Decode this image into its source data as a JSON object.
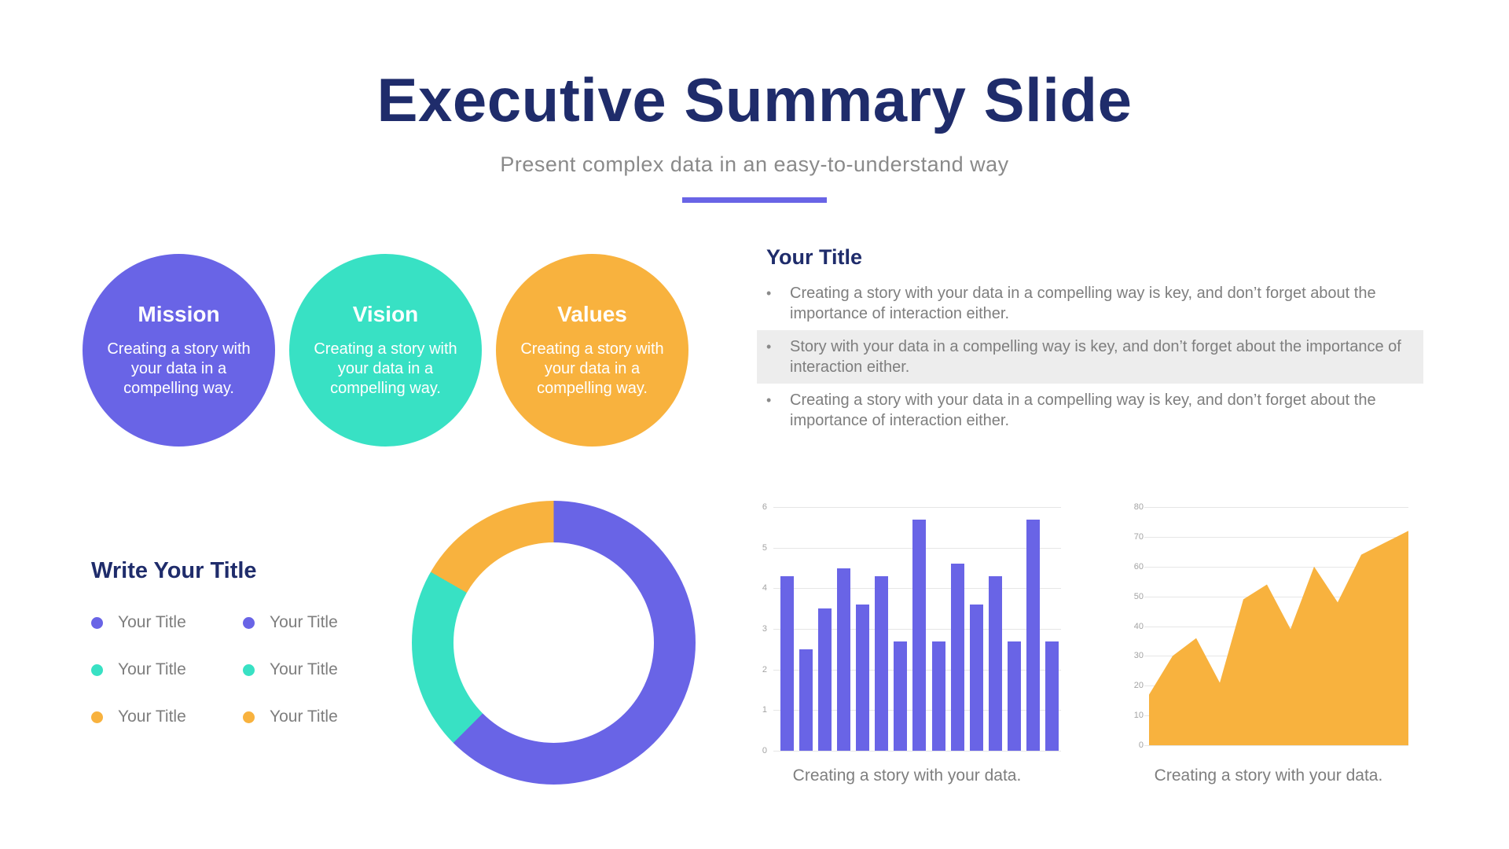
{
  "header": {
    "title": "Executive Summary Slide",
    "subtitle": "Present complex data in an easy-to-understand way"
  },
  "colors": {
    "navy": "#1F2C6B",
    "purple": "#6964E6",
    "teal": "#38E1C4",
    "orange": "#F8B23E",
    "text_gray": "#7E7E7E",
    "tick_gray": "#A3A3A3",
    "highlight_bg": "#EDEDED",
    "gridline": "#E6E6E6",
    "background": "#FFFFFF"
  },
  "circles": [
    {
      "title": "Mission",
      "body": "Creating a story with your data in a compelling way.",
      "color": "#6964E6"
    },
    {
      "title": "Vision",
      "body": "Creating a story with your data in a compelling way.",
      "color": "#38E1C4"
    },
    {
      "title": "Values",
      "body": "Creating a story with your data in a compelling way.",
      "color": "#F8B23E"
    }
  ],
  "bullets_section": {
    "title": "Your Title",
    "items": [
      {
        "text": "Creating a story with your data in a compelling way is key, and don’t forget about the importance of interaction either.",
        "highlighted": false
      },
      {
        "text": "Story with your data in a compelling way is key, and don’t forget about the importance of interaction either.",
        "highlighted": true
      },
      {
        "text": "Creating a story with your data in a compelling way is key, and don’t forget about the importance of interaction either.",
        "highlighted": false
      }
    ]
  },
  "legend_section": {
    "title": "Write Your Title",
    "items": [
      {
        "label": "Your Title",
        "color": "#6964E6"
      },
      {
        "label": "Your Title",
        "color": "#6964E6"
      },
      {
        "label": "Your Title",
        "color": "#38E1C4"
      },
      {
        "label": "Your Title",
        "color": "#38E1C4"
      },
      {
        "label": "Your Title",
        "color": "#F8B23E"
      },
      {
        "label": "Your Title",
        "color": "#F8B23E"
      }
    ]
  },
  "chart_data": [
    {
      "type": "pie",
      "subtype": "donut",
      "labels": [
        "Your Title",
        "Your Title",
        "Your Title"
      ],
      "values": [
        62.5,
        20.8,
        16.7
      ],
      "colors": [
        "#6964E6",
        "#38E1C4",
        "#F8B23E"
      ],
      "start_angle_deg": 0,
      "legend_position": "left"
    },
    {
      "type": "bar",
      "values": [
        4.3,
        2.5,
        3.5,
        4.5,
        3.6,
        4.3,
        2.7,
        5.7,
        2.7,
        4.6,
        3.6,
        4.3,
        2.7,
        5.7,
        2.7
      ],
      "ylim": [
        0,
        6
      ],
      "yticks": [
        0,
        1,
        2,
        3,
        4,
        5,
        6
      ],
      "color": "#6964E6",
      "grid": true,
      "title": "",
      "xlabel": "",
      "ylabel": "",
      "caption": "Creating a story with your data."
    },
    {
      "type": "area",
      "values": [
        17,
        30,
        36,
        21,
        49,
        54,
        39,
        60,
        48,
        64,
        68,
        72
      ],
      "ylim": [
        0,
        80
      ],
      "yticks": [
        0,
        10,
        20,
        30,
        40,
        50,
        60,
        70,
        80
      ],
      "color": "#F8B23E",
      "grid": true,
      "title": "",
      "xlabel": "",
      "ylabel": "",
      "caption": "Creating a story with your data."
    }
  ]
}
